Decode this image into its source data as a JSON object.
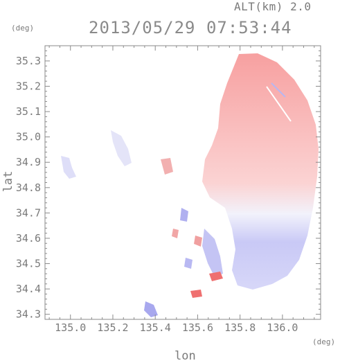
{
  "header": {
    "altitude_label": "ALT(km) 2.0",
    "timestamp": "2013/05/29 07:53:44"
  },
  "axes": {
    "x_label": "lon",
    "y_label": "lat",
    "x_unit": "(deg)",
    "y_unit": "(deg)",
    "x_ticks": [
      "135.0",
      "135.2",
      "135.4",
      "135.6",
      "135.8",
      "136.0"
    ],
    "y_ticks": [
      "35.3",
      "35.2",
      "35.1",
      "35.0",
      "34.9",
      "34.8",
      "34.7",
      "34.6",
      "34.5",
      "34.4",
      "34.3"
    ],
    "x_range": [
      134.88,
      136.18
    ],
    "y_range": [
      34.28,
      35.36
    ]
  },
  "legend": {
    "colors": {
      "away": "#f29a9a",
      "toward": "#9a9af2",
      "frame": "#8a8a8a"
    }
  }
}
